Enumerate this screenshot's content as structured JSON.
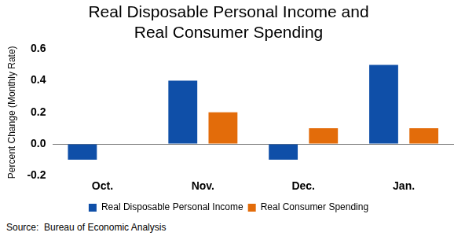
{
  "chart_data": {
    "type": "bar",
    "title": [
      "Real Disposable Personal Income and",
      "Real Consumer Spending"
    ],
    "y_label": "Percent Change (Monthly Rate)",
    "source": "Source:  Bureau of Economic Analysis",
    "categories": [
      "Oct.",
      "Nov.",
      "Dec.",
      "Jan."
    ],
    "series": [
      {
        "name": "Real Disposable Personal Income",
        "color": "#0f4fa8",
        "values": [
          -0.1,
          0.4,
          -0.1,
          0.5
        ]
      },
      {
        "name": "Real Consumer Spending",
        "color": "#e36c0a",
        "values": [
          0,
          0.2,
          0.1,
          0.1
        ]
      }
    ],
    "ylim": [
      -0.2,
      0.6
    ],
    "yticks": [
      -0.2,
      {
        "value": 0,
        "label": "0.0"
      },
      0.2,
      0.4,
      0.6
    ],
    "grid": false,
    "legend": "bottom"
  }
}
